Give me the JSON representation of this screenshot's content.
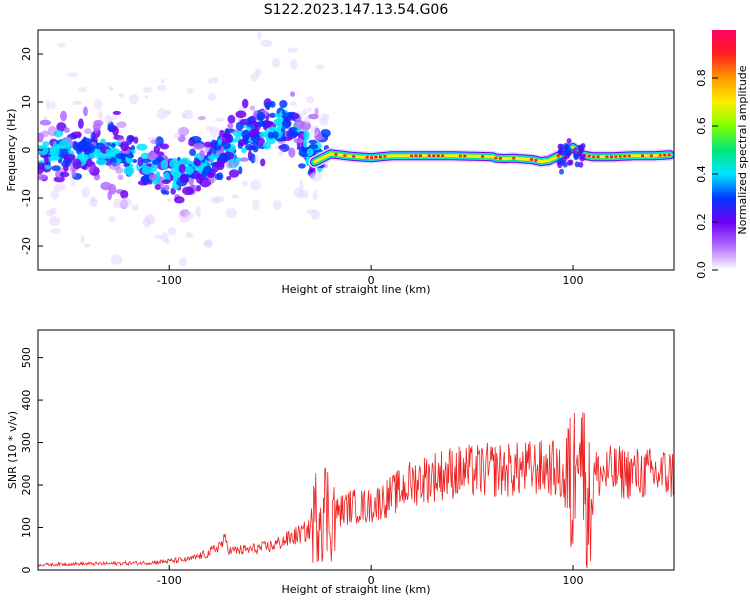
{
  "title": "S122.2023.147.13.54.G06",
  "chart_data": [
    {
      "type": "heatmap",
      "xlabel": "Height of straight line (km)",
      "ylabel": "Frequency (Hz)",
      "xlim": [
        -165,
        150
      ],
      "ylim": [
        -25,
        25
      ],
      "x_ticks": [
        -100,
        0,
        100
      ],
      "y_ticks": [
        -20,
        -10,
        0,
        10,
        20
      ],
      "grid": false,
      "colorbar": {
        "label": "Normalized spectral amplitude",
        "range": [
          0.0,
          1.0
        ],
        "ticks": [
          0.0,
          0.2,
          0.4,
          0.6,
          0.8
        ],
        "tick_labels": [
          "0.0",
          "0.2",
          "0.4",
          "0.6",
          "0.8"
        ],
        "colors": [
          "#ffffff",
          "#b36bff",
          "#6a00f4",
          "#0038ff",
          "#00e5ff",
          "#00e676",
          "#7fff00",
          "#ffee00",
          "#ff9800",
          "#ff1f1f",
          "#ff0066"
        ]
      },
      "ridge": {
        "x": [
          -28,
          -20,
          -10,
          0,
          10,
          20,
          40,
          60,
          62,
          66,
          70,
          80,
          84,
          88,
          94,
          100,
          104,
          110,
          120,
          130,
          140,
          148
        ],
        "freq": [
          -2.5,
          -0.8,
          -1.3,
          -1.6,
          -1.2,
          -1.2,
          -1.2,
          -1.4,
          -1.7,
          -1.8,
          -1.7,
          -2.0,
          -2.4,
          -2.2,
          -1.0,
          0.5,
          -1.0,
          -1.4,
          -1.4,
          -1.2,
          -1.2,
          -1.0
        ]
      },
      "noise_region": {
        "x_range": [
          -165,
          -28
        ],
        "freq_center": [
          [
            -165,
            -1
          ],
          [
            -130,
            0
          ],
          [
            -100,
            -5
          ],
          [
            -80,
            -3
          ],
          [
            -60,
            3
          ],
          [
            -40,
            6
          ],
          [
            -30,
            -1
          ]
        ]
      }
    },
    {
      "type": "line",
      "xlabel": "Height of straight line (km)",
      "ylabel": "SNR (10 * v/v)",
      "xlim": [
        -165,
        150
      ],
      "ylim": [
        0,
        565
      ],
      "x_ticks": [
        -100,
        0,
        100
      ],
      "y_ticks": [
        0,
        100,
        200,
        300,
        400,
        500
      ],
      "grid": false,
      "series": [
        {
          "color": "#ee2222",
          "x": [
            -165,
            -150,
            -130,
            -110,
            -90,
            -80,
            -72,
            -70,
            -60,
            -50,
            -40,
            -30,
            -25,
            -20,
            -15,
            -10,
            0,
            10,
            20,
            30,
            40,
            50,
            60,
            70,
            80,
            90,
            95,
            98,
            100,
            102,
            105,
            108,
            110,
            120,
            130,
            140,
            150
          ],
          "y": [
            12,
            14,
            15,
            17,
            25,
            40,
            70,
            45,
            48,
            55,
            75,
            95,
            160,
            130,
            140,
            150,
            150,
            175,
            205,
            220,
            230,
            232,
            235,
            235,
            240,
            240,
            215,
            210,
            150,
            400,
            250,
            140,
            225,
            230,
            228,
            226,
            226
          ]
        }
      ]
    }
  ]
}
